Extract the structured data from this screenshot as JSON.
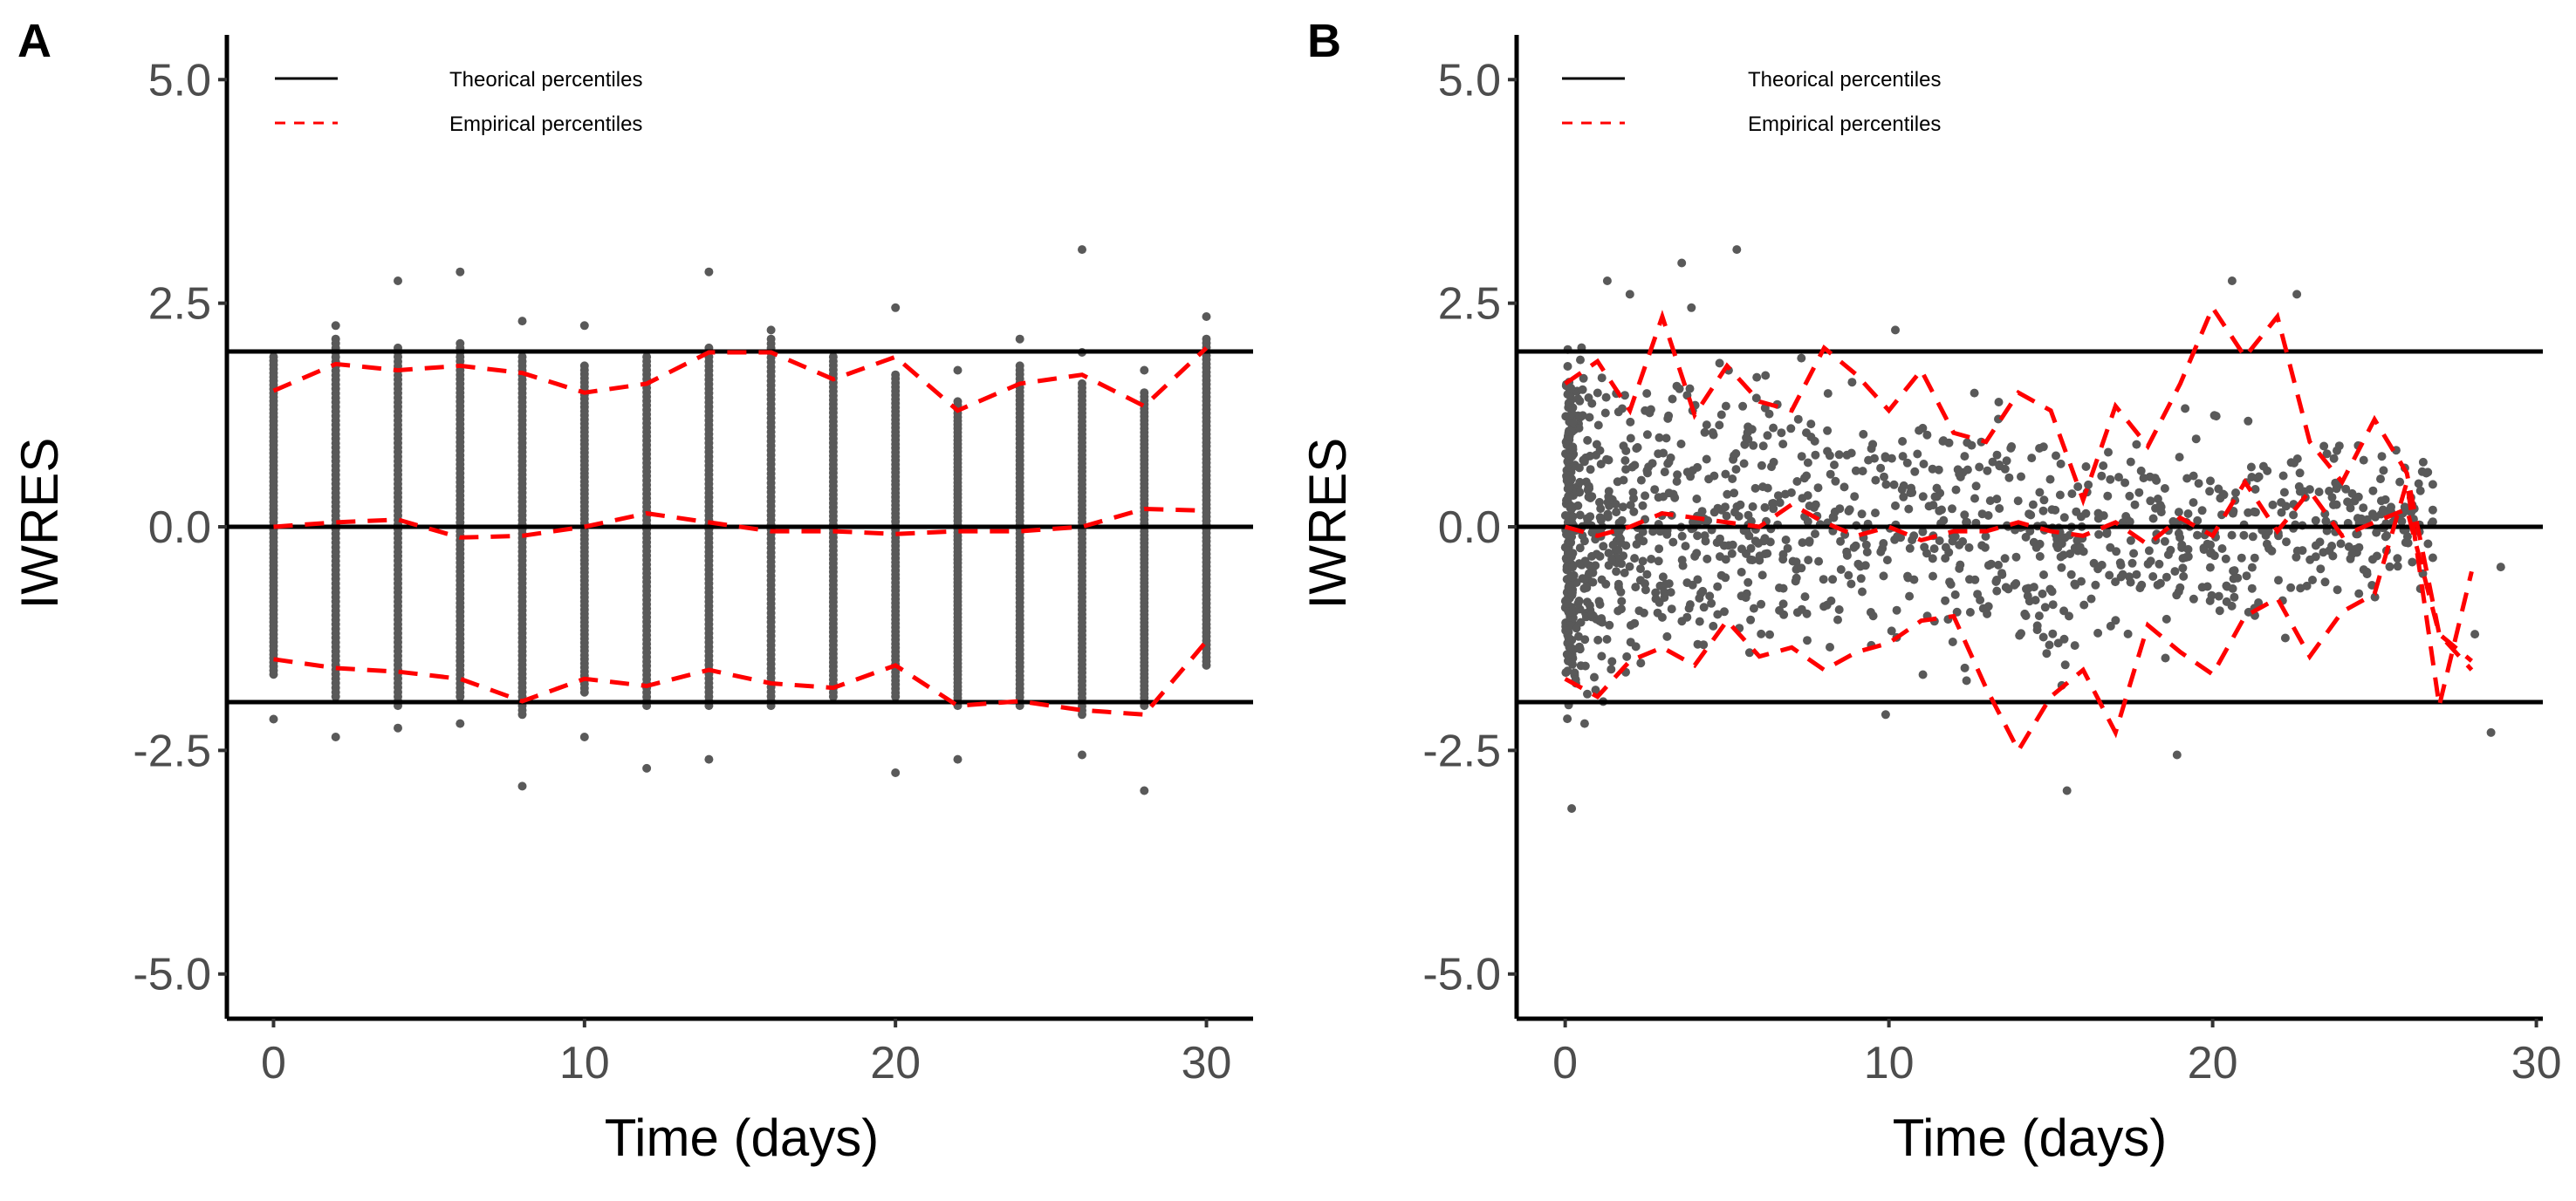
{
  "chart_data": [
    {
      "type": "scatter",
      "panel_label": "A",
      "xlabel": "Time (days)",
      "ylabel": "IWRES",
      "xlim": [
        -1.5,
        31.5
      ],
      "ylim": [
        -5.5,
        5.5
      ],
      "x_ticks": [
        0,
        10,
        20,
        30
      ],
      "y_ticks": [
        -5.0,
        -2.5,
        0.0,
        2.5,
        5.0
      ],
      "x_tick_labels": [
        "0",
        "10",
        "20",
        "30"
      ],
      "y_tick_labels": [
        "-5.0",
        "-2.5",
        "0.0",
        "2.5",
        "5.0"
      ],
      "grid": false,
      "legend_position": "top-left",
      "legend": [
        {
          "label": "Theorical percentiles",
          "style": "solid",
          "color": "#000000"
        },
        {
          "label": "Empirical percentiles",
          "style": "dashed",
          "color": "#ff0000"
        }
      ],
      "theoretical_percentiles": [
        -1.96,
        0,
        1.96
      ],
      "empirical_percentiles": [
        {
          "name": "upper",
          "x": [
            0,
            2,
            4,
            6,
            8,
            10,
            12,
            14,
            16,
            18,
            20,
            22,
            24,
            26,
            28,
            30
          ],
          "y": [
            1.52,
            1.82,
            1.75,
            1.8,
            1.72,
            1.5,
            1.6,
            1.95,
            1.95,
            1.65,
            1.9,
            1.3,
            1.6,
            1.7,
            1.35,
            2.0
          ]
        },
        {
          "name": "median",
          "x": [
            0,
            2,
            4,
            6,
            8,
            10,
            12,
            14,
            16,
            18,
            20,
            22,
            24,
            26,
            28,
            30
          ],
          "y": [
            0.0,
            0.05,
            0.08,
            -0.12,
            -0.1,
            0.0,
            0.15,
            0.05,
            -0.05,
            -0.05,
            -0.08,
            -0.05,
            -0.05,
            0.0,
            0.2,
            0.18
          ]
        },
        {
          "name": "lower",
          "x": [
            0,
            2,
            4,
            6,
            8,
            10,
            12,
            14,
            16,
            18,
            20,
            22,
            24,
            26,
            28,
            30
          ],
          "y": [
            -1.48,
            -1.58,
            -1.62,
            -1.7,
            -1.95,
            -1.7,
            -1.78,
            -1.6,
            -1.75,
            -1.8,
            -1.55,
            -2.0,
            -1.95,
            -2.05,
            -2.1,
            -1.28
          ]
        }
      ],
      "points_by_time": [
        {
          "x": 0,
          "min": -1.65,
          "max": 1.9,
          "outliers": [
            -2.15
          ]
        },
        {
          "x": 2,
          "min": -1.9,
          "max": 2.1,
          "outliers": [
            2.25,
            -2.35
          ]
        },
        {
          "x": 4,
          "min": -2.0,
          "max": 2.0,
          "outliers": [
            2.75,
            -2.25
          ]
        },
        {
          "x": 6,
          "min": -1.9,
          "max": 2.05,
          "outliers": [
            2.85,
            -2.2
          ]
        },
        {
          "x": 8,
          "min": -2.1,
          "max": 1.9,
          "outliers": [
            2.3,
            -2.9
          ]
        },
        {
          "x": 10,
          "min": -1.85,
          "max": 1.8,
          "outliers": [
            2.25,
            -2.35
          ]
        },
        {
          "x": 12,
          "min": -2.0,
          "max": 1.9,
          "outliers": [
            -2.7
          ]
        },
        {
          "x": 14,
          "min": -2.0,
          "max": 2.0,
          "outliers": [
            2.85,
            -2.6
          ]
        },
        {
          "x": 16,
          "min": -2.0,
          "max": 2.1,
          "outliers": [
            2.2
          ]
        },
        {
          "x": 18,
          "min": -1.9,
          "max": 1.9,
          "outliers": []
        },
        {
          "x": 20,
          "min": -1.9,
          "max": 1.7,
          "outliers": [
            2.45,
            -2.75
          ]
        },
        {
          "x": 22,
          "min": -2.0,
          "max": 1.4,
          "outliers": [
            1.75,
            -2.6
          ]
        },
        {
          "x": 24,
          "min": -2.0,
          "max": 1.8,
          "outliers": [
            2.1
          ]
        },
        {
          "x": 26,
          "min": -2.1,
          "max": 1.6,
          "outliers": [
            1.95,
            3.1,
            -2.55
          ]
        },
        {
          "x": 28,
          "min": -2.0,
          "max": 1.5,
          "outliers": [
            1.75,
            -2.95
          ]
        },
        {
          "x": 30,
          "min": -1.55,
          "max": 2.1,
          "outliers": [
            2.35
          ]
        }
      ]
    },
    {
      "type": "scatter",
      "panel_label": "B",
      "xlabel": "Time (days)",
      "ylabel": "IWRES",
      "xlim": [
        -1.5,
        30.2
      ],
      "ylim": [
        -5.5,
        5.5
      ],
      "x_ticks": [
        0,
        10,
        20,
        30
      ],
      "y_ticks": [
        -5.0,
        -2.5,
        0.0,
        2.5,
        5.0
      ],
      "x_tick_labels": [
        "0",
        "10",
        "20",
        "30"
      ],
      "y_tick_labels": [
        "-5.0",
        "-2.5",
        "0.0",
        "2.5",
        "5.0"
      ],
      "grid": false,
      "legend_position": "top-left",
      "legend": [
        {
          "label": "Theorical percentiles",
          "style": "solid",
          "color": "#000000"
        },
        {
          "label": "Empirical percentiles",
          "style": "dashed",
          "color": "#ff0000"
        }
      ],
      "theoretical_percentiles": [
        -1.96,
        0,
        1.96
      ],
      "empirical_percentiles": [
        {
          "name": "upper",
          "x": [
            0,
            1,
            2,
            3,
            4,
            5,
            6,
            7,
            8,
            9,
            10,
            11,
            12,
            13,
            14,
            15,
            16,
            17,
            18,
            19,
            20,
            21,
            22,
            23,
            24,
            25,
            26,
            27,
            28
          ],
          "y": [
            1.6,
            1.85,
            1.3,
            2.35,
            1.25,
            1.8,
            1.4,
            1.3,
            2.0,
            1.7,
            1.3,
            1.75,
            1.05,
            0.95,
            1.5,
            1.3,
            0.3,
            1.35,
            0.9,
            1.6,
            2.45,
            1.9,
            2.35,
            0.95,
            0.5,
            1.2,
            0.6,
            -1.2,
            -1.6
          ]
        },
        {
          "name": "median",
          "x": [
            0,
            1,
            2,
            3,
            4,
            5,
            6,
            7,
            8,
            9,
            10,
            11,
            12,
            13,
            14,
            15,
            16,
            17,
            18,
            19,
            20,
            21,
            22,
            23,
            24,
            25,
            26,
            27,
            28
          ],
          "y": [
            0.0,
            -0.1,
            0.0,
            0.15,
            0.1,
            0.05,
            0.0,
            0.25,
            0.05,
            -0.1,
            0.0,
            -0.15,
            -0.05,
            -0.05,
            0.05,
            -0.05,
            -0.1,
            0.05,
            -0.2,
            0.1,
            -0.1,
            0.5,
            -0.05,
            0.4,
            -0.1,
            0.05,
            0.2,
            -1.2,
            -1.5
          ]
        },
        {
          "name": "lower",
          "x": [
            0,
            1,
            2,
            3,
            4,
            5,
            6,
            7,
            8,
            9,
            10,
            11,
            12,
            13,
            14,
            15,
            16,
            17,
            18,
            19,
            20,
            21,
            22,
            23,
            24,
            25,
            26,
            27,
            28
          ],
          "y": [
            -1.7,
            -1.9,
            -1.5,
            -1.35,
            -1.55,
            -1.05,
            -1.45,
            -1.35,
            -1.6,
            -1.4,
            -1.3,
            -1.05,
            -1.0,
            -1.8,
            -2.5,
            -1.9,
            -1.6,
            -2.3,
            -1.1,
            -1.4,
            -1.65,
            -1.0,
            -0.8,
            -1.45,
            -0.95,
            -0.75,
            0.5,
            -2.0,
            -0.5
          ]
        }
      ],
      "scatter_trend": [
        {
          "x": 0,
          "lo": -1.9,
          "hi": 1.9
        },
        {
          "x": 5,
          "lo": -1.6,
          "hi": 1.75
        },
        {
          "x": 10,
          "lo": -1.35,
          "hi": 1.55
        },
        {
          "x": 15,
          "lo": -1.6,
          "hi": 1.1
        },
        {
          "x": 20,
          "lo": -1.3,
          "hi": 1.3
        },
        {
          "x": 26,
          "lo": -0.7,
          "hi": 0.8
        }
      ],
      "outliers": [
        {
          "x": 0.2,
          "y": -3.15
        },
        {
          "x": 0.6,
          "y": -2.2
        },
        {
          "x": 1.3,
          "y": 2.75
        },
        {
          "x": 2.0,
          "y": 2.6
        },
        {
          "x": 3.6,
          "y": 2.95
        },
        {
          "x": 3.9,
          "y": 2.45
        },
        {
          "x": 5.3,
          "y": 3.1
        },
        {
          "x": 10.2,
          "y": 2.2
        },
        {
          "x": 9.9,
          "y": -2.1
        },
        {
          "x": 15.5,
          "y": -2.95
        },
        {
          "x": 18.9,
          "y": -2.55
        },
        {
          "x": 20.6,
          "y": 2.75
        },
        {
          "x": 22.6,
          "y": 2.6
        },
        {
          "x": 26.6,
          "y": 0.6
        },
        {
          "x": 28.1,
          "y": -1.2
        },
        {
          "x": 28.9,
          "y": -0.45
        },
        {
          "x": 28.6,
          "y": -2.3
        }
      ]
    }
  ]
}
